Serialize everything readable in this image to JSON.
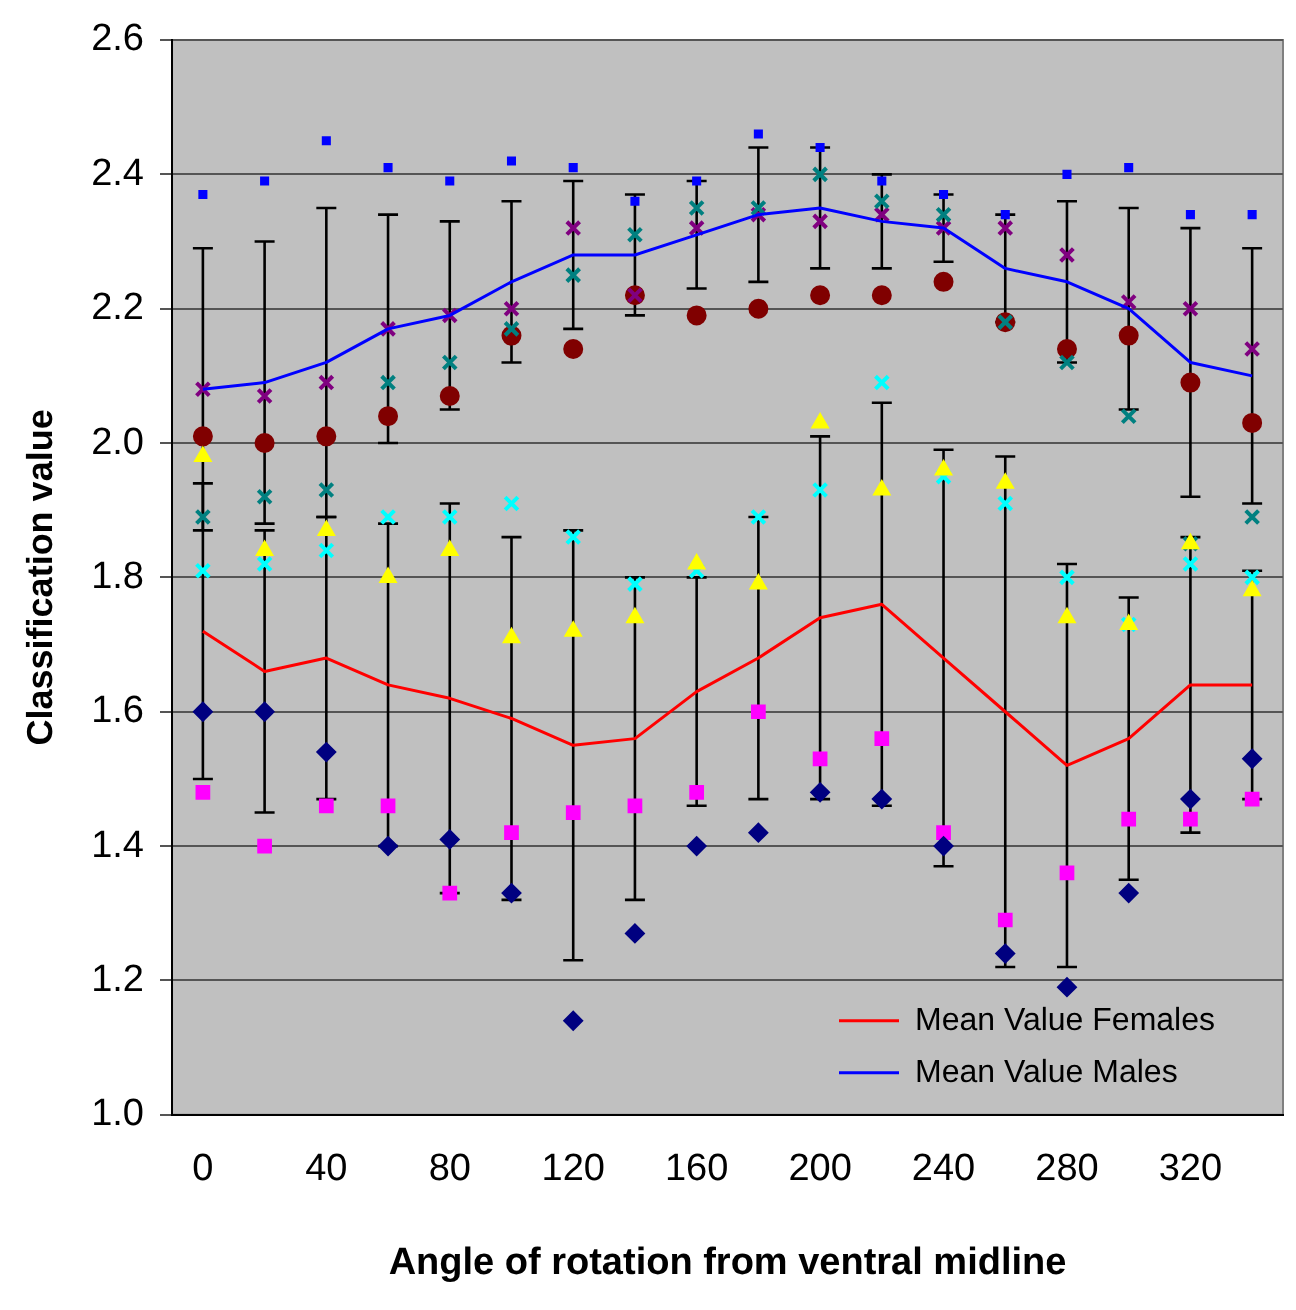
{
  "chart_data": {
    "type": "scatter",
    "xlabel": "Angle of rotation from ventral midline",
    "ylabel": "Classification value",
    "x": [
      0,
      20,
      40,
      60,
      80,
      100,
      120,
      140,
      160,
      180,
      200,
      220,
      240,
      260,
      280,
      300,
      320,
      340
    ],
    "xlim": [
      -10,
      350
    ],
    "xticks": [
      0,
      40,
      80,
      120,
      160,
      200,
      240,
      280,
      320
    ],
    "ylim": [
      1,
      2.6
    ],
    "yticks": [
      {
        "value": 1,
        "label": "1.0"
      },
      1.2,
      1.4,
      1.6,
      1.8,
      {
        "value": 2,
        "label": "2.0"
      },
      2.2,
      2.4,
      2.6
    ],
    "grid": "y",
    "legend": "bottom right",
    "series": [
      {
        "type": "line",
        "name": "Mean Value Females",
        "color": "#ff0000",
        "marker": "none",
        "values": [
          1.72,
          1.66,
          1.68,
          1.64,
          1.62,
          1.59,
          1.55,
          1.56,
          1.63,
          1.68,
          1.74,
          1.76,
          1.68,
          1.6,
          1.52,
          1.56,
          1.64,
          1.64
        ],
        "errors": [
          0.22,
          0.21,
          0.21,
          0.24,
          0.29,
          0.27,
          0.32,
          0.24,
          0.17,
          0.21,
          0.27,
          0.3,
          0.31,
          0.38,
          0.3,
          0.21,
          0.22,
          0.17
        ]
      },
      {
        "type": "line",
        "name": "Mean Value Males",
        "color": "#0000ff",
        "marker": "none",
        "values": [
          2.08,
          2.09,
          2.12,
          2.17,
          2.19,
          2.24,
          2.28,
          2.28,
          2.31,
          2.34,
          2.35,
          2.33,
          2.32,
          2.26,
          2.24,
          2.2,
          2.12,
          2.1
        ],
        "errors": [
          0.21,
          0.21,
          0.23,
          0.17,
          0.14,
          0.12,
          0.11,
          0.09,
          0.08,
          0.1,
          0.09,
          0.07,
          0.05,
          0.08,
          0.12,
          0.15,
          0.2,
          0.19
        ]
      },
      {
        "type": "scatter",
        "color": "#000080",
        "marker": "diamond",
        "values": [
          1.6,
          1.6,
          1.54,
          1.4,
          1.41,
          1.33,
          1.14,
          1.27,
          1.4,
          1.42,
          1.48,
          1.47,
          1.4,
          1.24,
          1.19,
          1.33,
          1.47,
          1.53
        ]
      },
      {
        "type": "scatter",
        "color": "#ff00ff",
        "marker": "square",
        "values": [
          1.48,
          1.4,
          1.46,
          1.46,
          1.33,
          1.42,
          1.45,
          1.46,
          1.48,
          1.6,
          1.53,
          1.56,
          1.42,
          1.29,
          1.36,
          1.44,
          1.44,
          1.47
        ]
      },
      {
        "type": "scatter",
        "color": "#ffff00",
        "marker": "triangle",
        "values": [
          1.98,
          1.84,
          1.87,
          1.8,
          1.84,
          1.71,
          1.72,
          1.74,
          1.82,
          1.79,
          2.03,
          1.93,
          1.96,
          1.94,
          1.74,
          1.73,
          1.85,
          1.78
        ]
      },
      {
        "type": "scatter",
        "color": "#00ffff",
        "marker": "cross",
        "values": [
          1.81,
          1.82,
          1.84,
          1.89,
          1.89,
          1.91,
          1.86,
          1.79,
          1.81,
          1.89,
          1.93,
          2.09,
          1.95,
          1.91,
          1.8,
          1.73,
          1.82,
          1.8
        ]
      },
      {
        "type": "scatter",
        "color": "#008080",
        "marker": "cross",
        "values": [
          1.89,
          1.92,
          1.93,
          2.09,
          2.12,
          2.17,
          2.25,
          2.31,
          2.35,
          2.35,
          2.4,
          2.36,
          2.34,
          2.18,
          2.12,
          2.04,
          1.85,
          1.89
        ]
      },
      {
        "type": "scatter",
        "color": "#800080",
        "marker": "cross",
        "values": [
          2.08,
          2.07,
          2.09,
          2.17,
          2.19,
          2.2,
          2.32,
          2.22,
          2.32,
          2.34,
          2.33,
          2.34,
          2.32,
          2.32,
          2.28,
          2.21,
          2.2,
          2.14
        ]
      },
      {
        "type": "scatter",
        "color": "#800000",
        "marker": "circle",
        "values": [
          2.01,
          2,
          2.01,
          2.04,
          2.07,
          2.16,
          2.14,
          2.22,
          2.19,
          2.2,
          2.22,
          2.22,
          2.24,
          2.18,
          2.14,
          2.16,
          2.09,
          2.03
        ]
      },
      {
        "type": "scatter",
        "color": "#0000ff",
        "marker": "square",
        "values": [
          2.37,
          2.39,
          2.45,
          2.41,
          2.39,
          2.42,
          2.41,
          2.36,
          2.39,
          2.46,
          2.44,
          2.39,
          2.37,
          2.34,
          2.4,
          2.41,
          2.34,
          2.34
        ]
      }
    ]
  }
}
